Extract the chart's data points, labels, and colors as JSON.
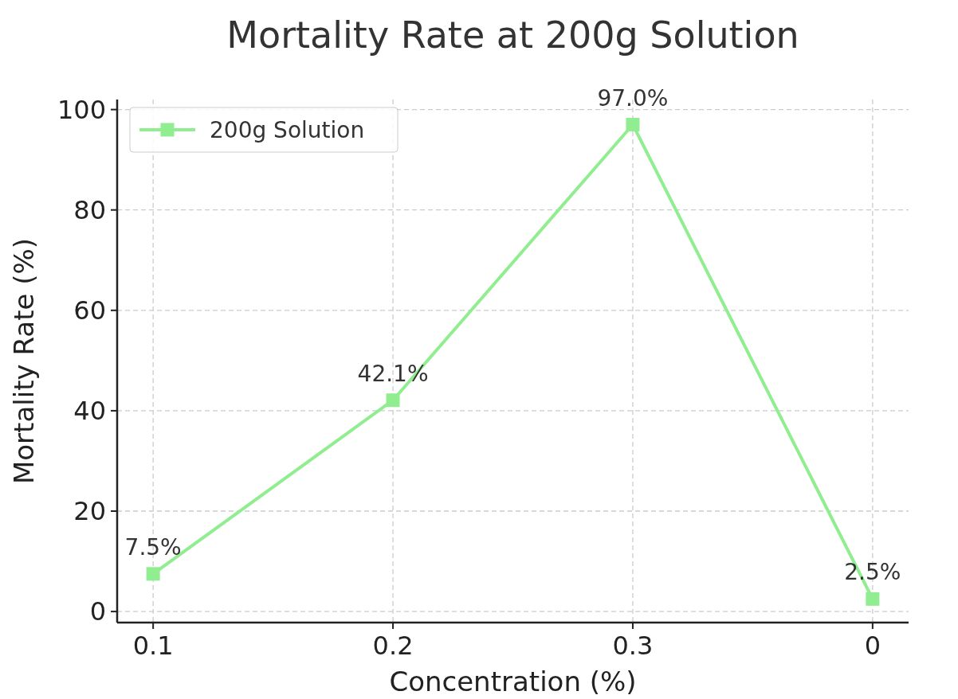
{
  "chart_data": {
    "type": "line",
    "title": "Mortality Rate at 200g Solution",
    "xlabel": "Concentration (%)",
    "ylabel": "Mortality Rate (%)",
    "categories": [
      "0.1",
      "0.2",
      "0.3",
      "0"
    ],
    "series": [
      {
        "name": "200g Solution",
        "color": "#90ee90",
        "values": [
          7.5,
          42.1,
          97.0,
          2.5
        ],
        "value_labels": [
          "7.5%",
          "42.1%",
          "97.0%",
          "2.5%"
        ]
      }
    ],
    "ylim": [
      -2.2,
      102
    ],
    "yticks": [
      0,
      20,
      40,
      60,
      80,
      100
    ],
    "grid": true,
    "legend": "top left",
    "marker": "square",
    "line_style": "solid"
  }
}
